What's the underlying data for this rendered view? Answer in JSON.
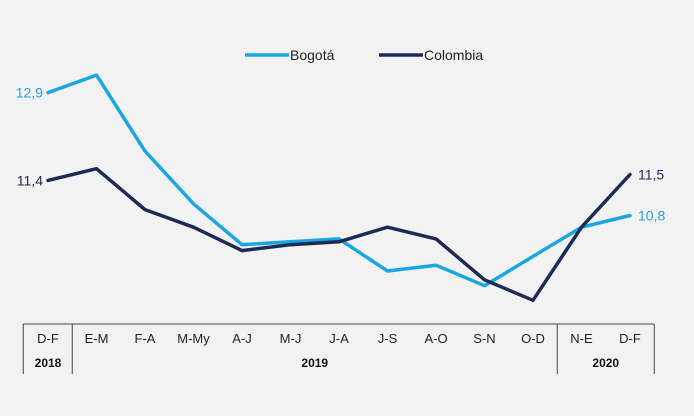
{
  "chart_data": {
    "type": "line",
    "categories": [
      "D-F",
      "E-M",
      "F-A",
      "M-My",
      "A-J",
      "M-J",
      "J-A",
      "J-S",
      "A-O",
      "S-N",
      "O-D",
      "N-E",
      "D-F"
    ],
    "year_groups": [
      {
        "label": "2018",
        "start": 0,
        "end": 0
      },
      {
        "label": "2019",
        "start": 1,
        "end": 10
      },
      {
        "label": "2020",
        "start": 11,
        "end": 12
      }
    ],
    "series": [
      {
        "name": "Bogotá",
        "color": "#1aa7e0",
        "values": [
          12.9,
          13.2,
          11.9,
          11.0,
          10.3,
          10.35,
          10.4,
          9.85,
          9.95,
          9.6,
          10.1,
          10.6,
          10.8
        ]
      },
      {
        "name": "Colombia",
        "color": "#1c2a55",
        "values": [
          11.4,
          11.6,
          10.9,
          10.6,
          10.2,
          10.3,
          10.35,
          10.6,
          10.4,
          9.7,
          9.35,
          10.6,
          11.5
        ]
      }
    ],
    "data_labels": [
      {
        "series": 0,
        "index": 0,
        "text": "12,9",
        "side": "left"
      },
      {
        "series": 1,
        "index": 0,
        "text": "11,4",
        "side": "left"
      },
      {
        "series": 1,
        "index": 12,
        "text": "11,5",
        "side": "right"
      },
      {
        "series": 0,
        "index": 12,
        "text": "10,8",
        "side": "right"
      }
    ],
    "title": "",
    "xlabel": "",
    "ylabel": "",
    "ylim": [
      8.5,
      13.8
    ],
    "grid": false,
    "legend_position": "top-center"
  }
}
